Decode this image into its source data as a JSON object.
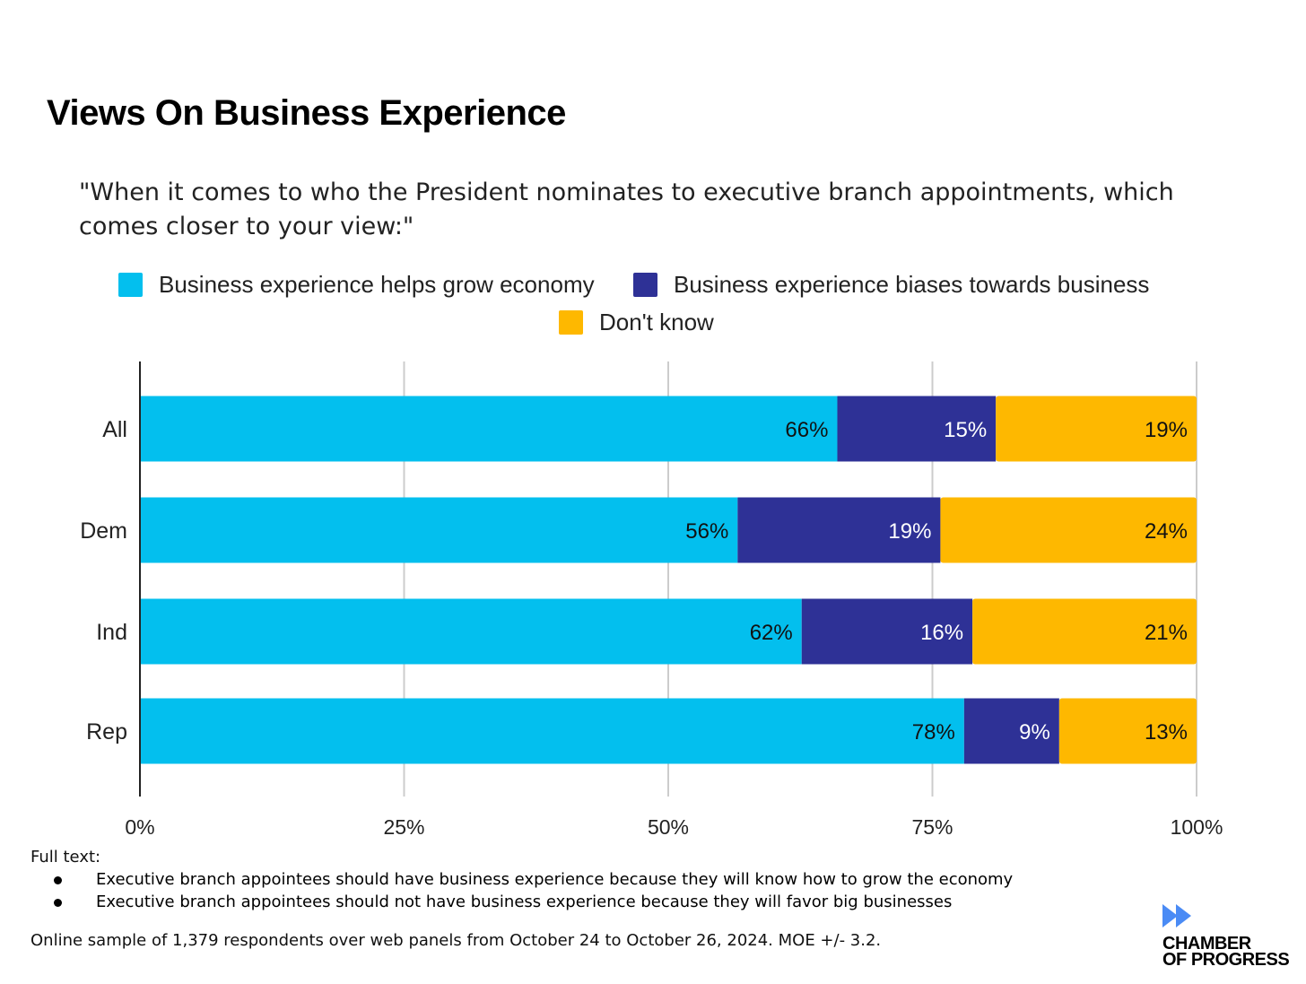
{
  "chart_data": {
    "type": "bar",
    "stacked": true,
    "orientation": "horizontal",
    "title": "Views On Business Experience",
    "subtitle": "\"When it comes to who the President nominates to executive branch appointments, which comes closer to your view:\"",
    "categories": [
      "All",
      "Dem",
      "Ind",
      "Rep"
    ],
    "series": [
      {
        "name": "Business experience helps grow economy",
        "color": "#03BFEE",
        "label_color": "#111111",
        "values": [
          66,
          56,
          62,
          78
        ]
      },
      {
        "name": "Business experience biases towards business",
        "color": "#2E3196",
        "label_color": "#ffffff",
        "values": [
          15,
          19,
          16,
          9
        ]
      },
      {
        "name": "Don't know",
        "color": "#FEB800",
        "label_color": "#111111",
        "values": [
          19,
          24,
          21,
          13
        ]
      }
    ],
    "xlim": [
      0,
      100
    ],
    "xticks": [
      "0%",
      "25%",
      "50%",
      "75%",
      "100%"
    ],
    "grid": true,
    "legend": "top-center"
  },
  "footer": {
    "full_text_label": "Full text:",
    "bullets": [
      "Executive branch appointees should have business experience because they will know how to grow the economy",
      "Executive branch appointees should not have business experience because they will favor big businesses"
    ],
    "sample_note": "Online sample of 1,379 respondents over web panels from October 24 to October 26, 2024. MOE +/- 3.2."
  },
  "logo": {
    "line1": "CHAMBER",
    "line2": "OF PROGRESS",
    "color": "#4A8BF5"
  }
}
